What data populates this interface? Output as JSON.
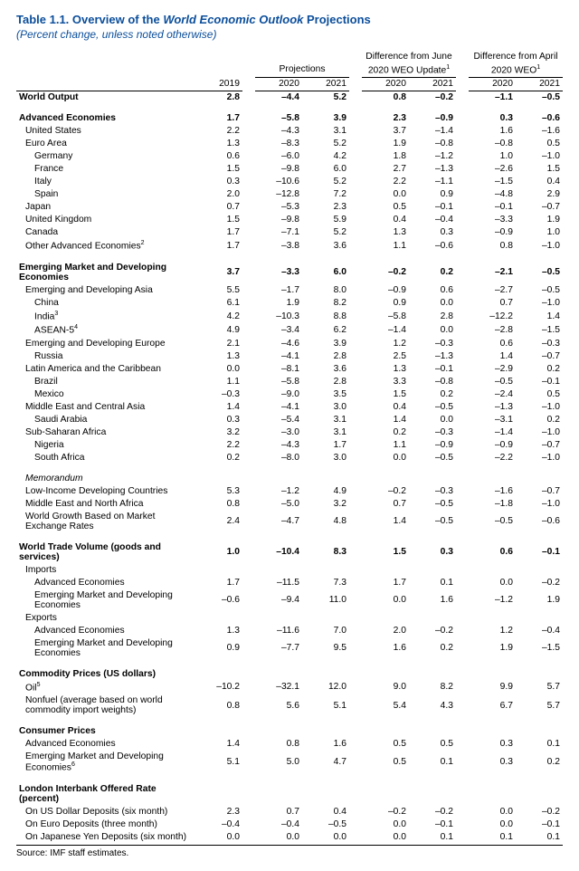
{
  "title_prefix": "Table 1.1. Overview of the ",
  "title_italic": "World Economic Outlook",
  "title_suffix": " Projections",
  "subtitle": "(Percent change, unless noted otherwise)",
  "spanheaders": {
    "proj": "Projections",
    "diff_june_a": "Difference from June",
    "diff_june_b": "2020 WEO Update",
    "diff_june_sup": "1",
    "diff_apr_a": "Difference from April",
    "diff_apr_b": "2020 WEO",
    "diff_apr_sup": "1"
  },
  "colyears": {
    "y2019": "2019",
    "p2020": "2020",
    "p2021": "2021",
    "j2020": "2020",
    "j2021": "2021",
    "a2020": "2020",
    "a2021": "2021"
  },
  "rows": [
    {
      "label": "World Output",
      "indent": 0,
      "bold": true,
      "vals": [
        "2.8",
        "–4.4",
        "5.2",
        "0.8",
        "–0.2",
        "–1.1",
        "–0.5"
      ]
    },
    {
      "spacer": true
    },
    {
      "label": "Advanced Economies",
      "indent": 0,
      "bold": true,
      "vals": [
        "1.7",
        "–5.8",
        "3.9",
        "2.3",
        "–0.9",
        "0.3",
        "–0.6"
      ]
    },
    {
      "label": "United States",
      "indent": 1,
      "vals": [
        "2.2",
        "–4.3",
        "3.1",
        "3.7",
        "–1.4",
        "1.6",
        "–1.6"
      ]
    },
    {
      "label": "Euro Area",
      "indent": 1,
      "vals": [
        "1.3",
        "–8.3",
        "5.2",
        "1.9",
        "–0.8",
        "–0.8",
        "0.5"
      ]
    },
    {
      "label": "Germany",
      "indent": 2,
      "vals": [
        "0.6",
        "–6.0",
        "4.2",
        "1.8",
        "–1.2",
        "1.0",
        "–1.0"
      ]
    },
    {
      "label": "France",
      "indent": 2,
      "vals": [
        "1.5",
        "–9.8",
        "6.0",
        "2.7",
        "–1.3",
        "–2.6",
        "1.5"
      ]
    },
    {
      "label": "Italy",
      "indent": 2,
      "vals": [
        "0.3",
        "–10.6",
        "5.2",
        "2.2",
        "–1.1",
        "–1.5",
        "0.4"
      ]
    },
    {
      "label": "Spain",
      "indent": 2,
      "vals": [
        "2.0",
        "–12.8",
        "7.2",
        "0.0",
        "0.9",
        "–4.8",
        "2.9"
      ]
    },
    {
      "label": "Japan",
      "indent": 1,
      "vals": [
        "0.7",
        "–5.3",
        "2.3",
        "0.5",
        "–0.1",
        "–0.1",
        "–0.7"
      ]
    },
    {
      "label": "United Kingdom",
      "indent": 1,
      "vals": [
        "1.5",
        "–9.8",
        "5.9",
        "0.4",
        "–0.4",
        "–3.3",
        "1.9"
      ]
    },
    {
      "label": "Canada",
      "indent": 1,
      "vals": [
        "1.7",
        "–7.1",
        "5.2",
        "1.3",
        "0.3",
        "–0.9",
        "1.0"
      ]
    },
    {
      "label": "Other Advanced Economies",
      "sup": "2",
      "indent": 1,
      "vals": [
        "1.7",
        "–3.8",
        "3.6",
        "1.1",
        "–0.6",
        "0.8",
        "–1.0"
      ]
    },
    {
      "spacer": true
    },
    {
      "label": "Emerging Market and Developing Economies",
      "indent": 0,
      "bold": true,
      "vals": [
        "3.7",
        "–3.3",
        "6.0",
        "–0.2",
        "0.2",
        "–2.1",
        "–0.5"
      ]
    },
    {
      "label": "Emerging and Developing Asia",
      "indent": 1,
      "vals": [
        "5.5",
        "–1.7",
        "8.0",
        "–0.9",
        "0.6",
        "–2.7",
        "–0.5"
      ]
    },
    {
      "label": "China",
      "indent": 2,
      "vals": [
        "6.1",
        "1.9",
        "8.2",
        "0.9",
        "0.0",
        "0.7",
        "–1.0"
      ]
    },
    {
      "label": "India",
      "sup": "3",
      "indent": 2,
      "vals": [
        "4.2",
        "–10.3",
        "8.8",
        "–5.8",
        "2.8",
        "–12.2",
        "1.4"
      ]
    },
    {
      "label": "ASEAN-5",
      "sup": "4",
      "indent": 2,
      "vals": [
        "4.9",
        "–3.4",
        "6.2",
        "–1.4",
        "0.0",
        "–2.8",
        "–1.5"
      ]
    },
    {
      "label": "Emerging and Developing Europe",
      "indent": 1,
      "vals": [
        "2.1",
        "–4.6",
        "3.9",
        "1.2",
        "–0.3",
        "0.6",
        "–0.3"
      ]
    },
    {
      "label": "Russia",
      "indent": 2,
      "vals": [
        "1.3",
        "–4.1",
        "2.8",
        "2.5",
        "–1.3",
        "1.4",
        "–0.7"
      ]
    },
    {
      "label": "Latin America and the Caribbean",
      "indent": 1,
      "vals": [
        "0.0",
        "–8.1",
        "3.6",
        "1.3",
        "–0.1",
        "–2.9",
        "0.2"
      ]
    },
    {
      "label": "Brazil",
      "indent": 2,
      "vals": [
        "1.1",
        "–5.8",
        "2.8",
        "3.3",
        "–0.8",
        "–0.5",
        "–0.1"
      ]
    },
    {
      "label": "Mexico",
      "indent": 2,
      "vals": [
        "–0.3",
        "–9.0",
        "3.5",
        "1.5",
        "0.2",
        "–2.4",
        "0.5"
      ]
    },
    {
      "label": "Middle East and Central Asia",
      "indent": 1,
      "vals": [
        "1.4",
        "–4.1",
        "3.0",
        "0.4",
        "–0.5",
        "–1.3",
        "–1.0"
      ]
    },
    {
      "label": "Saudi Arabia",
      "indent": 2,
      "vals": [
        "0.3",
        "–5.4",
        "3.1",
        "1.4",
        "0.0",
        "–3.1",
        "0.2"
      ]
    },
    {
      "label": "Sub-Saharan Africa",
      "indent": 1,
      "vals": [
        "3.2",
        "–3.0",
        "3.1",
        "0.2",
        "–0.3",
        "–1.4",
        "–1.0"
      ]
    },
    {
      "label": "Nigeria",
      "indent": 2,
      "vals": [
        "2.2",
        "–4.3",
        "1.7",
        "1.1",
        "–0.9",
        "–0.9",
        "–0.7"
      ]
    },
    {
      "label": "South Africa",
      "indent": 2,
      "vals": [
        "0.2",
        "–8.0",
        "3.0",
        "0.0",
        "–0.5",
        "–2.2",
        "–1.0"
      ]
    },
    {
      "spacer": true
    },
    {
      "label": "Memorandum",
      "indent": 1,
      "memo": true,
      "vals": [
        "",
        "",
        "",
        "",
        "",
        "",
        ""
      ]
    },
    {
      "label": "Low-Income Developing Countries",
      "indent": 1,
      "vals": [
        "5.3",
        "–1.2",
        "4.9",
        "–0.2",
        "–0.3",
        "–1.6",
        "–0.7"
      ]
    },
    {
      "label": "Middle East and North Africa",
      "indent": 1,
      "vals": [
        "0.8",
        "–5.0",
        "3.2",
        "0.7",
        "–0.5",
        "–1.8",
        "–1.0"
      ]
    },
    {
      "label": "World Growth Based on Market Exchange Rates",
      "indent": 1,
      "vals": [
        "2.4",
        "–4.7",
        "4.8",
        "1.4",
        "–0.5",
        "–0.5",
        "–0.6"
      ]
    },
    {
      "spacer": true
    },
    {
      "label": "World Trade Volume (goods and services)",
      "indent": 0,
      "bold": true,
      "vals": [
        "1.0",
        "–10.4",
        "8.3",
        "1.5",
        "0.3",
        "0.6",
        "–0.1"
      ]
    },
    {
      "label": "Imports",
      "indent": 1,
      "vals": [
        "",
        "",
        "",
        "",
        "",
        "",
        ""
      ]
    },
    {
      "label": "Advanced Economies",
      "indent": 2,
      "vals": [
        "1.7",
        "–11.5",
        "7.3",
        "1.7",
        "0.1",
        "0.0",
        "–0.2"
      ]
    },
    {
      "label": "Emerging Market and Developing Economies",
      "indent": 2,
      "vals": [
        "–0.6",
        "–9.4",
        "11.0",
        "0.0",
        "1.6",
        "–1.2",
        "1.9"
      ]
    },
    {
      "label": "Exports",
      "indent": 1,
      "vals": [
        "",
        "",
        "",
        "",
        "",
        "",
        ""
      ]
    },
    {
      "label": "Advanced Economies",
      "indent": 2,
      "vals": [
        "1.3",
        "–11.6",
        "7.0",
        "2.0",
        "–0.2",
        "1.2",
        "–0.4"
      ]
    },
    {
      "label": "Emerging Market and Developing Economies",
      "indent": 2,
      "vals": [
        "0.9",
        "–7.7",
        "9.5",
        "1.6",
        "0.2",
        "1.9",
        "–1.5"
      ]
    },
    {
      "spacer": true
    },
    {
      "label": "Commodity Prices (US dollars)",
      "indent": 0,
      "bold": true,
      "vals": [
        "",
        "",
        "",
        "",
        "",
        "",
        ""
      ]
    },
    {
      "label": "Oil",
      "sup": "5",
      "indent": 1,
      "vals": [
        "–10.2",
        "–32.1",
        "12.0",
        "9.0",
        "8.2",
        "9.9",
        "5.7"
      ]
    },
    {
      "label": "Nonfuel (average based on world commodity import weights)",
      "indent": 1,
      "vals": [
        "0.8",
        "5.6",
        "5.1",
        "5.4",
        "4.3",
        "6.7",
        "5.7"
      ]
    },
    {
      "spacer": true
    },
    {
      "label": "Consumer Prices",
      "indent": 0,
      "bold": true,
      "vals": [
        "",
        "",
        "",
        "",
        "",
        "",
        ""
      ]
    },
    {
      "label": "Advanced Economies",
      "indent": 1,
      "vals": [
        "1.4",
        "0.8",
        "1.6",
        "0.5",
        "0.5",
        "0.3",
        "0.1"
      ]
    },
    {
      "label": "Emerging Market and Developing Economies",
      "sup": "6",
      "indent": 1,
      "vals": [
        "5.1",
        "5.0",
        "4.7",
        "0.5",
        "0.1",
        "0.3",
        "0.2"
      ]
    },
    {
      "spacer": true
    },
    {
      "label": "London Interbank Offered Rate (percent)",
      "indent": 0,
      "bold": true,
      "vals": [
        "",
        "",
        "",
        "",
        "",
        "",
        ""
      ]
    },
    {
      "label": "On US Dollar Deposits (six month)",
      "indent": 1,
      "vals": [
        "2.3",
        "0.7",
        "0.4",
        "–0.2",
        "–0.2",
        "0.0",
        "–0.2"
      ]
    },
    {
      "label": "On Euro Deposits (three month)",
      "indent": 1,
      "vals": [
        "–0.4",
        "–0.4",
        "–0.5",
        "0.0",
        "–0.1",
        "0.0",
        "–0.1"
      ]
    },
    {
      "label": "On Japanese Yen Deposits (six month)",
      "indent": 1,
      "vals": [
        "0.0",
        "0.0",
        "0.0",
        "0.0",
        "0.1",
        "0.1",
        "0.1"
      ]
    }
  ],
  "source": "Source: IMF staff estimates."
}
